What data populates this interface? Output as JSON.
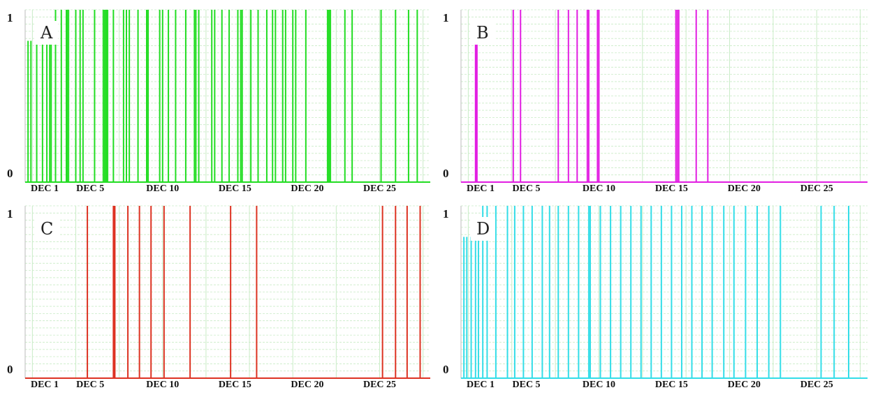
{
  "chart_data": [
    {
      "type": "bar",
      "panel_label": "A",
      "color": "#22dd22",
      "y_min_label": "0",
      "y_max_label": "1",
      "ylim": [
        0,
        1
      ],
      "x_tick_labels": [
        "DEC 1",
        "DEC 5",
        "DEC 10",
        "DEC 15",
        "DEC 20",
        "DEC 25"
      ],
      "x_tick_values": [
        1,
        5,
        10,
        15,
        20,
        25
      ],
      "xlim": [
        0.5,
        28.5
      ],
      "grid": true,
      "events": [
        {
          "x": 0.7,
          "y": 0.82
        },
        {
          "x": 0.9,
          "y": 0.82
        },
        {
          "x": 1.3,
          "y": 0.82
        },
        {
          "x": 1.7,
          "y": 0.82
        },
        {
          "x": 2.0,
          "y": 0.82
        },
        {
          "x": 2.2,
          "y": 0.92
        },
        {
          "x": 2.3,
          "y": 0.92
        },
        {
          "x": 2.6,
          "y": 1.0
        },
        {
          "x": 3.0,
          "y": 1.0
        },
        {
          "x": 3.35,
          "y": 1.0
        },
        {
          "x": 3.4,
          "y": 1.0
        },
        {
          "x": 3.5,
          "y": 1.0
        },
        {
          "x": 4.0,
          "y": 1.0
        },
        {
          "x": 4.3,
          "y": 1.0
        },
        {
          "x": 4.5,
          "y": 1.0
        },
        {
          "x": 5.3,
          "y": 1.0
        },
        {
          "x": 5.9,
          "y": 1.0
        },
        {
          "x": 6.0,
          "y": 1.0
        },
        {
          "x": 6.1,
          "y": 1.0
        },
        {
          "x": 6.2,
          "y": 1.0
        },
        {
          "x": 6.6,
          "y": 1.0
        },
        {
          "x": 7.3,
          "y": 1.0
        },
        {
          "x": 7.5,
          "y": 1.0
        },
        {
          "x": 7.7,
          "y": 1.0
        },
        {
          "x": 8.3,
          "y": 1.0
        },
        {
          "x": 8.9,
          "y": 1.0
        },
        {
          "x": 9.0,
          "y": 1.0
        },
        {
          "x": 9.8,
          "y": 1.0
        },
        {
          "x": 10.0,
          "y": 1.0
        },
        {
          "x": 10.4,
          "y": 1.0
        },
        {
          "x": 10.9,
          "y": 1.0
        },
        {
          "x": 11.6,
          "y": 1.0
        },
        {
          "x": 12.2,
          "y": 1.0
        },
        {
          "x": 12.3,
          "y": 1.0
        },
        {
          "x": 12.5,
          "y": 1.0
        },
        {
          "x": 13.4,
          "y": 1.0
        },
        {
          "x": 13.6,
          "y": 1.0
        },
        {
          "x": 14.1,
          "y": 1.0
        },
        {
          "x": 14.6,
          "y": 1.0
        },
        {
          "x": 15.2,
          "y": 1.0
        },
        {
          "x": 15.4,
          "y": 1.0
        },
        {
          "x": 15.5,
          "y": 1.0
        },
        {
          "x": 16.1,
          "y": 1.0
        },
        {
          "x": 16.6,
          "y": 1.0
        },
        {
          "x": 17.2,
          "y": 1.0
        },
        {
          "x": 17.6,
          "y": 1.0
        },
        {
          "x": 17.8,
          "y": 1.0
        },
        {
          "x": 18.3,
          "y": 1.0
        },
        {
          "x": 18.5,
          "y": 1.0
        },
        {
          "x": 19.0,
          "y": 1.0
        },
        {
          "x": 19.2,
          "y": 1.0
        },
        {
          "x": 19.9,
          "y": 1.0
        },
        {
          "x": 21.4,
          "y": 1.0
        },
        {
          "x": 21.5,
          "y": 1.0
        },
        {
          "x": 21.6,
          "y": 1.0
        },
        {
          "x": 22.6,
          "y": 1.0
        },
        {
          "x": 23.1,
          "y": 1.0
        },
        {
          "x": 25.1,
          "y": 1.0
        },
        {
          "x": 26.1,
          "y": 1.0
        },
        {
          "x": 27.0,
          "y": 1.0
        },
        {
          "x": 27.6,
          "y": 1.0
        }
      ]
    },
    {
      "type": "bar",
      "panel_label": "B",
      "color": "#e21fe2",
      "y_min_label": "0",
      "y_max_label": "1",
      "ylim": [
        0,
        1
      ],
      "x_tick_labels": [
        "DEC 1",
        "DEC 5",
        "DEC 10",
        "DEC 15",
        "DEC 20",
        "DEC 25"
      ],
      "x_tick_values": [
        1,
        5,
        10,
        15,
        20,
        25
      ],
      "xlim": [
        0.5,
        28.5
      ],
      "grid": true,
      "events": [
        {
          "x": 1.5,
          "y": 0.8
        },
        {
          "x": 1.55,
          "y": 0.8
        },
        {
          "x": 1.6,
          "y": 0.8
        },
        {
          "x": 4.1,
          "y": 1.0
        },
        {
          "x": 4.6,
          "y": 1.0
        },
        {
          "x": 7.2,
          "y": 1.0
        },
        {
          "x": 7.9,
          "y": 1.0
        },
        {
          "x": 8.5,
          "y": 1.0
        },
        {
          "x": 9.2,
          "y": 1.0
        },
        {
          "x": 9.3,
          "y": 1.0
        },
        {
          "x": 9.9,
          "y": 1.0
        },
        {
          "x": 10.0,
          "y": 1.0
        },
        {
          "x": 15.3,
          "y": 1.0
        },
        {
          "x": 15.4,
          "y": 1.0
        },
        {
          "x": 15.5,
          "y": 1.0
        },
        {
          "x": 16.7,
          "y": 1.0
        },
        {
          "x": 17.5,
          "y": 1.0
        }
      ]
    },
    {
      "type": "bar",
      "panel_label": "C",
      "color": "#dd3322",
      "y_min_label": "0",
      "y_max_label": "1",
      "ylim": [
        0,
        1
      ],
      "x_tick_labels": [
        "DEC 1",
        "DEC 5",
        "DEC 10",
        "DEC 15",
        "DEC 20",
        "DEC 25"
      ],
      "x_tick_values": [
        1,
        5,
        10,
        15,
        20,
        25
      ],
      "xlim": [
        0.5,
        28.5
      ],
      "grid": true,
      "events": [
        {
          "x": 4.8,
          "y": 1.0
        },
        {
          "x": 6.6,
          "y": 1.0
        },
        {
          "x": 6.65,
          "y": 1.0
        },
        {
          "x": 6.7,
          "y": 1.0
        },
        {
          "x": 7.6,
          "y": 1.0
        },
        {
          "x": 8.4,
          "y": 1.0
        },
        {
          "x": 9.2,
          "y": 1.0
        },
        {
          "x": 10.1,
          "y": 1.0
        },
        {
          "x": 11.9,
          "y": 1.0
        },
        {
          "x": 14.7,
          "y": 1.0
        },
        {
          "x": 16.5,
          "y": 1.0
        },
        {
          "x": 25.2,
          "y": 1.0
        },
        {
          "x": 26.1,
          "y": 1.0
        },
        {
          "x": 26.9,
          "y": 1.0
        },
        {
          "x": 27.8,
          "y": 1.0
        }
      ]
    },
    {
      "type": "bar",
      "panel_label": "D",
      "color": "#33dde8",
      "y_min_label": "0",
      "y_max_label": "1",
      "ylim": [
        0,
        1
      ],
      "x_tick_labels": [
        "DEC 1",
        "DEC 5",
        "DEC 10",
        "DEC 15",
        "DEC 20",
        "DEC 25"
      ],
      "x_tick_values": [
        1,
        5,
        10,
        15,
        20,
        25
      ],
      "xlim": [
        0.5,
        28.5
      ],
      "grid": true,
      "events": [
        {
          "x": 0.7,
          "y": 0.82
        },
        {
          "x": 0.9,
          "y": 0.82
        },
        {
          "x": 1.2,
          "y": 0.82
        },
        {
          "x": 1.5,
          "y": 0.92
        },
        {
          "x": 1.7,
          "y": 0.92
        },
        {
          "x": 2.0,
          "y": 1.0
        },
        {
          "x": 2.3,
          "y": 1.0
        },
        {
          "x": 2.9,
          "y": 1.0
        },
        {
          "x": 3.7,
          "y": 1.0
        },
        {
          "x": 4.2,
          "y": 1.0
        },
        {
          "x": 4.8,
          "y": 1.0
        },
        {
          "x": 5.4,
          "y": 1.0
        },
        {
          "x": 6.1,
          "y": 1.0
        },
        {
          "x": 6.6,
          "y": 1.0
        },
        {
          "x": 7.2,
          "y": 1.0
        },
        {
          "x": 7.9,
          "y": 1.0
        },
        {
          "x": 8.6,
          "y": 1.0
        },
        {
          "x": 9.3,
          "y": 1.0
        },
        {
          "x": 9.4,
          "y": 1.0
        },
        {
          "x": 10.1,
          "y": 1.0
        },
        {
          "x": 10.8,
          "y": 1.0
        },
        {
          "x": 11.5,
          "y": 1.0
        },
        {
          "x": 12.2,
          "y": 1.0
        },
        {
          "x": 12.9,
          "y": 1.0
        },
        {
          "x": 13.6,
          "y": 1.0
        },
        {
          "x": 14.3,
          "y": 1.0
        },
        {
          "x": 15.0,
          "y": 1.0
        },
        {
          "x": 15.7,
          "y": 1.0
        },
        {
          "x": 16.4,
          "y": 1.0
        },
        {
          "x": 17.1,
          "y": 1.0
        },
        {
          "x": 17.8,
          "y": 1.0
        },
        {
          "x": 18.6,
          "y": 1.0
        },
        {
          "x": 19.3,
          "y": 1.0
        },
        {
          "x": 20.1,
          "y": 1.0
        },
        {
          "x": 20.9,
          "y": 1.0
        },
        {
          "x": 21.7,
          "y": 1.0
        },
        {
          "x": 22.5,
          "y": 1.0
        },
        {
          "x": 25.3,
          "y": 1.0
        },
        {
          "x": 26.2,
          "y": 1.0
        },
        {
          "x": 27.2,
          "y": 1.0
        }
      ]
    }
  ]
}
